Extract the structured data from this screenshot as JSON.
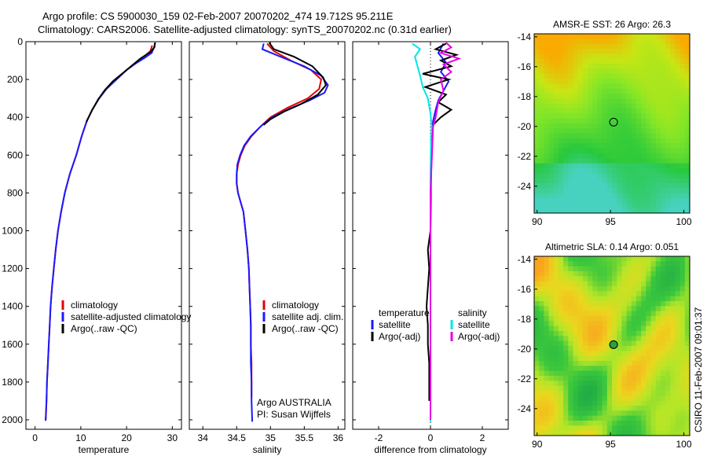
{
  "header": {
    "line1": "Argo profile: CS 5900030_159 02-Feb-2007 20070202_474 19.712S 95.211E",
    "line2": "Climatology: CARS2006. Satellite-adjusted climatology: synTS_20070202.nc (0.31d earlier)"
  },
  "colors": {
    "climatology": "#e60000",
    "satellite": "#1a1aff",
    "argo": "#000000",
    "salinity_sat": "#00e6e6",
    "salinity_argo": "#e600e6"
  },
  "chart_data": [
    {
      "type": "line",
      "xlabel": "temperature",
      "ylabel": "",
      "xlim": [
        -2,
        32
      ],
      "ylim": [
        2050,
        0
      ],
      "xticks": [
        0,
        10,
        20,
        30
      ],
      "yticks": [
        0,
        200,
        400,
        600,
        800,
        1000,
        1200,
        1400,
        1600,
        1800,
        2000
      ],
      "legend": {
        "placement": "lower-right",
        "entries": [
          "climatology",
          "satellite-adjusted climatology",
          "Argo(..raw -QC)"
        ]
      },
      "series": [
        {
          "name": "climatology",
          "color": "#e60000",
          "points": [
            [
              25.6,
              20
            ],
            [
              25.2,
              50
            ],
            [
              24,
              75
            ],
            [
              22,
              110
            ],
            [
              20,
              150
            ],
            [
              17.5,
              200
            ],
            [
              15.5,
              250
            ],
            [
              14,
              300
            ],
            [
              12.5,
              360
            ],
            [
              11.3,
              420
            ],
            [
              10.2,
              500
            ],
            [
              9,
              600
            ],
            [
              7.6,
              700
            ],
            [
              6.5,
              800
            ],
            [
              5.7,
              900
            ],
            [
              5,
              1000
            ],
            [
              4.5,
              1100
            ],
            [
              4.1,
              1200
            ],
            [
              3.7,
              1300
            ],
            [
              3.4,
              1400
            ],
            [
              3.2,
              1500
            ],
            [
              3,
              1600
            ],
            [
              2.8,
              1700
            ],
            [
              2.6,
              1800
            ],
            [
              2.5,
              1900
            ],
            [
              2.35,
              2000
            ]
          ]
        },
        {
          "name": "satellite-adjusted climatology",
          "color": "#1a1aff",
          "points": [
            [
              26.3,
              5
            ],
            [
              26,
              30
            ],
            [
              25.5,
              60
            ],
            [
              24,
              85
            ],
            [
              22,
              115
            ],
            [
              20,
              150
            ],
            [
              17.8,
              200
            ],
            [
              15.6,
              250
            ],
            [
              14,
              300
            ],
            [
              12.5,
              360
            ],
            [
              11.3,
              420
            ],
            [
              10.2,
              500
            ],
            [
              9,
              600
            ],
            [
              7.6,
              700
            ],
            [
              6.5,
              800
            ],
            [
              5.7,
              900
            ],
            [
              5,
              1000
            ],
            [
              4.5,
              1100
            ],
            [
              4.1,
              1200
            ],
            [
              3.7,
              1300
            ],
            [
              3.4,
              1400
            ],
            [
              3.2,
              1500
            ],
            [
              3,
              1600
            ],
            [
              2.8,
              1700
            ],
            [
              2.6,
              1800
            ],
            [
              2.5,
              1900
            ],
            [
              2.3,
              2005
            ]
          ]
        },
        {
          "name": "Argo(..raw -QC)",
          "color": "#000000",
          "points": [
            [
              26.2,
              5
            ],
            [
              26.1,
              30
            ],
            [
              25.2,
              55
            ],
            [
              23,
              90
            ],
            [
              21,
              130
            ],
            [
              19,
              170
            ],
            [
              17,
              210
            ],
            [
              15.3,
              255
            ],
            [
              13.8,
              305
            ],
            [
              12.4,
              365
            ],
            [
              11.2,
              425
            ]
          ]
        }
      ]
    },
    {
      "type": "line",
      "xlabel": "salinity",
      "xlim": [
        33.8,
        36.1
      ],
      "ylim": [
        2050,
        0
      ],
      "xticks": [
        34,
        34.5,
        35,
        35.5,
        36
      ],
      "yticks": [
        0,
        200,
        400,
        600,
        800,
        1000,
        1200,
        1400,
        1600,
        1800,
        2000
      ],
      "legend": {
        "placement": "lower-right",
        "entries": [
          "climatology",
          "satellite adj. clim.",
          "Argo(..raw -QC)"
        ]
      },
      "annotations": [
        "Argo AUSTRALIA",
        "PI: Susan Wijffels"
      ],
      "series": [
        {
          "name": "climatology",
          "color": "#e60000",
          "points": [
            [
              34.95,
              10
            ],
            [
              35.05,
              50
            ],
            [
              35.3,
              100
            ],
            [
              35.6,
              150
            ],
            [
              35.75,
              200
            ],
            [
              35.72,
              250
            ],
            [
              35.55,
              300
            ],
            [
              35.25,
              350
            ],
            [
              35,
              400
            ],
            [
              34.85,
              450
            ],
            [
              34.72,
              500
            ],
            [
              34.62,
              550
            ],
            [
              34.56,
              600
            ],
            [
              34.52,
              650
            ],
            [
              34.5,
              700
            ],
            [
              34.5,
              750
            ],
            [
              34.52,
              800
            ],
            [
              34.56,
              850
            ],
            [
              34.6,
              900
            ],
            [
              34.63,
              1000
            ],
            [
              34.66,
              1100
            ],
            [
              34.68,
              1200
            ],
            [
              34.69,
              1300
            ],
            [
              34.7,
              1400
            ],
            [
              34.71,
              1500
            ],
            [
              34.71,
              1600
            ],
            [
              34.72,
              1700
            ],
            [
              34.72,
              1800
            ],
            [
              34.72,
              1880
            ]
          ]
        },
        {
          "name": "satellite adj. clim.",
          "color": "#1a1aff",
          "points": [
            [
              34.9,
              10
            ],
            [
              34.88,
              40
            ],
            [
              35.15,
              80
            ],
            [
              35.5,
              130
            ],
            [
              35.75,
              180
            ],
            [
              35.85,
              230
            ],
            [
              35.8,
              270
            ],
            [
              35.58,
              310
            ],
            [
              35.28,
              355
            ],
            [
              35.02,
              400
            ],
            [
              34.85,
              450
            ],
            [
              34.71,
              500
            ],
            [
              34.61,
              550
            ],
            [
              34.55,
              600
            ],
            [
              34.51,
              650
            ],
            [
              34.5,
              700
            ],
            [
              34.5,
              750
            ],
            [
              34.52,
              800
            ],
            [
              34.56,
              850
            ],
            [
              34.6,
              900
            ],
            [
              34.63,
              1000
            ],
            [
              34.66,
              1100
            ],
            [
              34.68,
              1200
            ],
            [
              34.69,
              1300
            ],
            [
              34.7,
              1400
            ],
            [
              34.71,
              1500
            ],
            [
              34.71,
              1600
            ],
            [
              34.71,
              1700
            ],
            [
              34.72,
              1800
            ],
            [
              34.72,
              1900
            ],
            [
              34.73,
              2010
            ]
          ]
        },
        {
          "name": "Argo(..raw -QC)",
          "color": "#000000",
          "points": [
            [
              34.98,
              5
            ],
            [
              35.05,
              40
            ],
            [
              35.35,
              80
            ],
            [
              35.62,
              130
            ],
            [
              35.78,
              190
            ],
            [
              35.82,
              230
            ],
            [
              35.7,
              280
            ],
            [
              35.45,
              330
            ],
            [
              35.2,
              370
            ],
            [
              35,
              410
            ],
            [
              34.9,
              440
            ]
          ]
        }
      ]
    },
    {
      "type": "line",
      "xlabel": "difference from climatology",
      "xlim": [
        -3,
        3
      ],
      "ylim": [
        2050,
        0
      ],
      "xticks": [
        -2,
        0,
        2
      ],
      "yticks": [
        0,
        200,
        400,
        600,
        800,
        1000,
        1200,
        1400,
        1600,
        1800,
        2000
      ],
      "legend": {
        "placement": "lower",
        "groups": [
          {
            "heading": "temperature",
            "entries": [
              "satellite",
              "Argo(-adj)"
            ]
          },
          {
            "heading": "salinity",
            "entries": [
              "satellite",
              "Argo(-adj)"
            ]
          }
        ]
      },
      "series": [
        {
          "name": "temperature satellite",
          "color": "#1a1aff",
          "points": [
            [
              0.5,
              10
            ],
            [
              0.3,
              60
            ],
            [
              0.6,
              110
            ],
            [
              0.4,
              160
            ],
            [
              0.7,
              210
            ],
            [
              0.5,
              260
            ],
            [
              0.3,
              310
            ],
            [
              0.2,
              360
            ],
            [
              0.1,
              420
            ],
            [
              0.05,
              500
            ],
            [
              0.02,
              700
            ],
            [
              0,
              1000
            ],
            [
              0,
              1500
            ],
            [
              0,
              2010
            ]
          ]
        },
        {
          "name": "temperature Argo(-adj)",
          "color": "#000000",
          "points": [
            [
              0.6,
              10
            ],
            [
              0.2,
              40
            ],
            [
              1,
              70
            ],
            [
              0.4,
              100
            ],
            [
              0.8,
              130
            ],
            [
              -0.3,
              170
            ],
            [
              0.7,
              200
            ],
            [
              -0.2,
              240
            ],
            [
              0.6,
              280
            ],
            [
              0.3,
              320
            ],
            [
              0.8,
              360
            ],
            [
              0.4,
              400
            ],
            [
              0.1,
              440
            ],
            [
              0.05,
              500
            ],
            [
              0.02,
              700
            ],
            [
              0,
              1000
            ],
            [
              -0.1,
              1100
            ],
            [
              -0.05,
              1200
            ],
            [
              -0.1,
              1300
            ],
            [
              -0.15,
              1400
            ],
            [
              -0.1,
              1500
            ],
            [
              -0.1,
              1600
            ],
            [
              -0.05,
              1700
            ],
            [
              -0.05,
              1800
            ],
            [
              -0.05,
              1900
            ]
          ]
        },
        {
          "name": "salinity satellite",
          "color": "#00e6e6",
          "points": [
            [
              -0.7,
              10
            ],
            [
              -0.4,
              40
            ],
            [
              -0.6,
              80
            ],
            [
              -0.5,
              130
            ],
            [
              -0.4,
              180
            ],
            [
              -0.3,
              240
            ],
            [
              -0.1,
              300
            ],
            [
              0,
              380
            ],
            [
              0.05,
              450
            ],
            [
              0.02,
              500
            ],
            [
              0,
              700
            ],
            [
              0,
              1000
            ],
            [
              0,
              1500
            ],
            [
              0,
              2010
            ]
          ]
        },
        {
          "name": "salinity Argo(-adj)",
          "color": "#e600e6",
          "points": [
            [
              0.6,
              5
            ],
            [
              0.8,
              30
            ],
            [
              0.4,
              60
            ],
            [
              1.1,
              90
            ],
            [
              0.5,
              120
            ],
            [
              0.8,
              160
            ],
            [
              0.4,
              200
            ],
            [
              0.5,
              260
            ],
            [
              0.3,
              320
            ],
            [
              0.2,
              400
            ],
            [
              0.1,
              450
            ],
            [
              0,
              800
            ],
            [
              0,
              1500
            ],
            [
              0,
              2000
            ]
          ]
        }
      ]
    },
    {
      "type": "heatmap",
      "title": "AMSR-E SST: 26 Argo: 26.3",
      "xlim": [
        89.8,
        100.4
      ],
      "ylim": [
        -25.8,
        -13.8
      ],
      "xticks": [
        90,
        95,
        100
      ],
      "yticks": [
        -14,
        -16,
        -18,
        -20,
        -22,
        -24
      ],
      "marker": {
        "lon": 95.211,
        "lat": -19.712
      }
    },
    {
      "type": "heatmap",
      "title": "Altimetric SLA: 0.14 Argo: 0.051",
      "xlim": [
        89.8,
        100.4
      ],
      "ylim": [
        -25.8,
        -13.8
      ],
      "xticks": [
        90,
        95,
        100
      ],
      "yticks": [
        -14,
        -16,
        -18,
        -20,
        -22,
        -24
      ],
      "marker": {
        "lon": 95.211,
        "lat": -19.712
      }
    }
  ],
  "stamp": "CSIRO 11-Feb-2007 09:01:37"
}
